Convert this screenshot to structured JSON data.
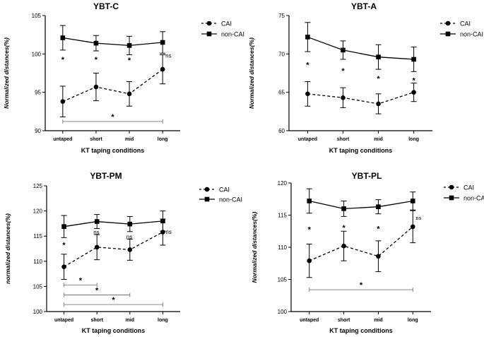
{
  "chart_data": [
    {
      "type": "line",
      "title": "YBT-C",
      "xlabel": "KT taping conditions",
      "ylabel": "Normalized distances(%)",
      "categories": [
        "untaped",
        "short",
        "mid",
        "long"
      ],
      "ylim": [
        90,
        105
      ],
      "yticks": [
        "90",
        "95",
        "100",
        "105"
      ],
      "yticks_num": [
        90,
        95,
        100,
        105
      ],
      "series": [
        {
          "name": "CAI",
          "marker": "circle",
          "line": "dashed",
          "values": [
            93.8,
            95.7,
            94.8,
            98.0
          ],
          "errors": [
            2.0,
            1.8,
            1.6,
            1.9
          ]
        },
        {
          "name": "non-CAI",
          "marker": "square",
          "line": "solid",
          "values": [
            102.1,
            101.4,
            101.1,
            101.5
          ],
          "errors": [
            1.6,
            1.0,
            1.2,
            1.4
          ]
        }
      ],
      "sig_marks": [
        {
          "label": "*",
          "category": 0,
          "value": 99.3
        },
        {
          "label": "*",
          "category": 1,
          "value": 99.3
        },
        {
          "label": "*",
          "category": 2,
          "value": 99.2
        }
      ],
      "ns_labels": [
        {
          "label": "ns",
          "category": 3,
          "value": 99.8
        }
      ],
      "brackets": [
        {
          "from": 0,
          "to": 3,
          "value": 91.2,
          "label": "*"
        }
      ],
      "legend_position": "top-right"
    },
    {
      "type": "line",
      "title": "YBT-A",
      "xlabel": "KT taping conditions",
      "ylabel": "Normalized distances(%)",
      "categories": [
        "untaped",
        "short",
        "mid",
        "long"
      ],
      "ylim": [
        60,
        75
      ],
      "yticks": [
        "60",
        "65",
        "70",
        "75"
      ],
      "yticks_num": [
        60,
        65,
        70,
        75
      ],
      "series": [
        {
          "name": "CAI",
          "marker": "circle",
          "line": "dashed",
          "values": [
            64.8,
            64.3,
            63.5,
            65.0
          ],
          "errors": [
            1.6,
            1.3,
            1.3,
            1.2
          ]
        },
        {
          "name": "non-CAI",
          "marker": "square",
          "line": "solid",
          "values": [
            72.2,
            70.5,
            69.6,
            69.3
          ],
          "errors": [
            1.9,
            1.2,
            1.6,
            1.6
          ]
        }
      ],
      "sig_marks": [
        {
          "label": "*",
          "category": 0,
          "value": 68.6
        },
        {
          "label": "*",
          "category": 1,
          "value": 67.8
        },
        {
          "label": "*",
          "category": 2,
          "value": 66.8
        },
        {
          "label": "*",
          "category": 3,
          "value": 66.6
        }
      ],
      "ns_labels": [],
      "brackets": [],
      "legend_position": "top-right"
    },
    {
      "type": "line",
      "title": "YBT-PM",
      "xlabel": "KT taping conditions",
      "ylabel": "normalized distances(%)",
      "categories": [
        "untaped",
        "short",
        "mid",
        "long"
      ],
      "ylim": [
        100,
        125
      ],
      "yticks": [
        "100",
        "105",
        "110",
        "115",
        "120",
        "125"
      ],
      "yticks_num": [
        100,
        105,
        110,
        115,
        120,
        125
      ],
      "series": [
        {
          "name": "CAI",
          "marker": "circle",
          "line": "dashed",
          "values": [
            108.9,
            112.8,
            112.3,
            115.8
          ],
          "errors": [
            2.5,
            2.5,
            2.1,
            2.6
          ]
        },
        {
          "name": "non-CAI",
          "marker": "square",
          "line": "solid",
          "values": [
            116.9,
            117.9,
            117.4,
            118.0
          ],
          "errors": [
            2.2,
            1.4,
            1.5,
            2.0
          ]
        }
      ],
      "sig_marks": [
        {
          "label": "*",
          "category": 0,
          "value": 113.3
        }
      ],
      "ns_labels": [
        {
          "label": "ns",
          "category": 1,
          "value": 115.8
        },
        {
          "label": "ns",
          "category": 2,
          "value": 114.9
        },
        {
          "label": "ns",
          "category": 3,
          "value": 115.9
        }
      ],
      "brackets": [
        {
          "from": 0,
          "to": 1,
          "value": 105.3,
          "label": "*"
        },
        {
          "from": 0,
          "to": 2,
          "value": 103.3,
          "label": "*"
        },
        {
          "from": 0,
          "to": 3,
          "value": 101.4,
          "label": "*"
        }
      ],
      "legend_position": "top-right"
    },
    {
      "type": "line",
      "title": "YBT-PL",
      "xlabel": "KT taping conditions",
      "ylabel": "Normalized distances(%)",
      "categories": [
        "untaped",
        "short",
        "mid",
        "long"
      ],
      "ylim": [
        100,
        120
      ],
      "yticks": [
        "100",
        "105",
        "110",
        "115",
        "120"
      ],
      "yticks_num": [
        100,
        105,
        110,
        115,
        120
      ],
      "series": [
        {
          "name": "CAI",
          "marker": "circle",
          "line": "dashed",
          "values": [
            107.9,
            110.2,
            108.6,
            113.2
          ],
          "errors": [
            2.6,
            2.3,
            2.4,
            2.5
          ]
        },
        {
          "name": "non-CAI",
          "marker": "square",
          "line": "solid",
          "values": [
            117.2,
            116.0,
            116.3,
            117.2
          ],
          "errors": [
            1.9,
            1.2,
            1.1,
            1.4
          ]
        }
      ],
      "sig_marks": [
        {
          "label": "*",
          "category": 0,
          "value": 112.8
        },
        {
          "label": "*",
          "category": 1,
          "value": 113.1
        },
        {
          "label": "*",
          "category": 2,
          "value": 112.9
        }
      ],
      "ns_labels": [
        {
          "label": "ns",
          "category": 3,
          "value": 114.6
        }
      ],
      "brackets": [
        {
          "from": 0,
          "to": 3,
          "value": 103.4,
          "label": "*"
        }
      ],
      "legend_position": "top-right"
    }
  ]
}
